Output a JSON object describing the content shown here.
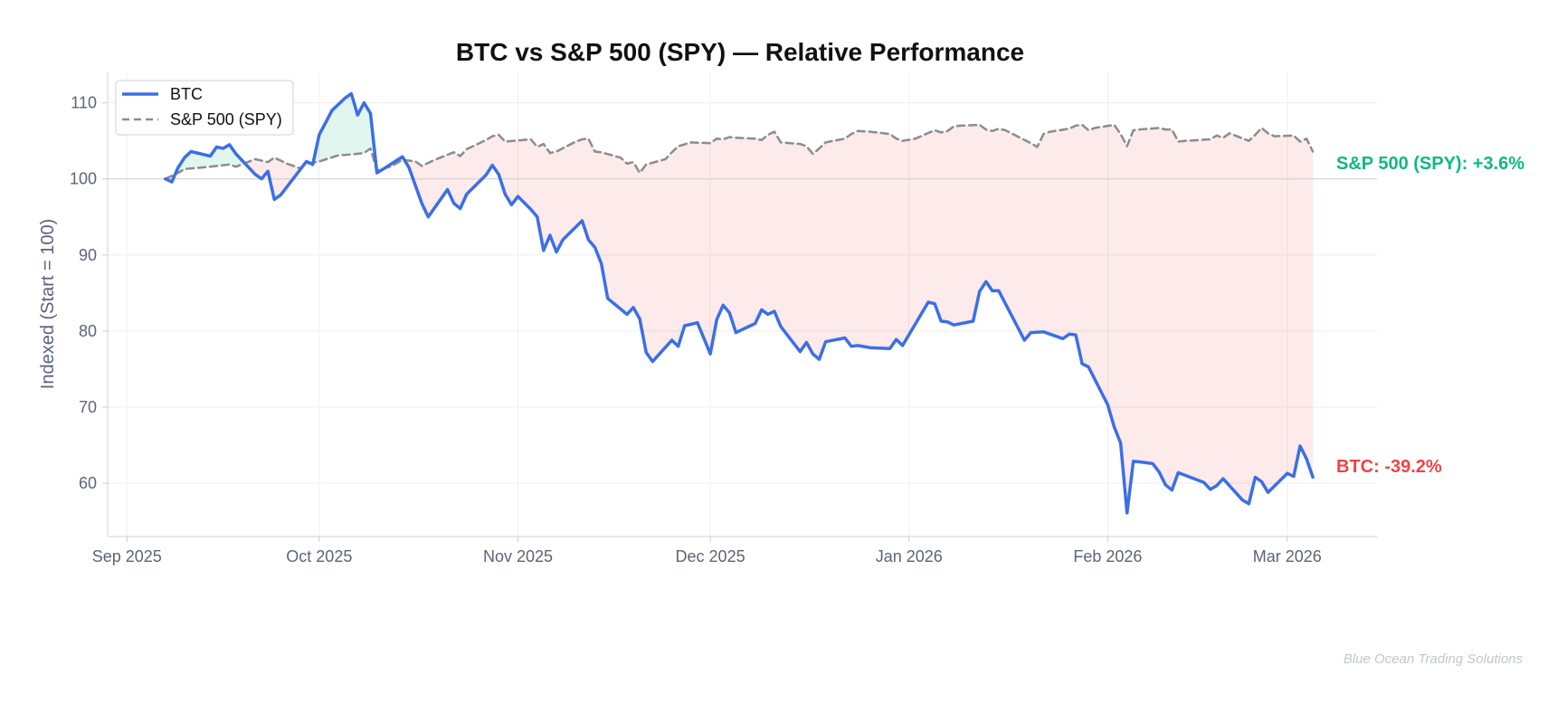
{
  "chart_data": {
    "type": "line",
    "title": "BTC vs S&P 500 (SPY) — Relative Performance",
    "ylabel": "Indexed (Start = 100)",
    "xlabel": "",
    "x_ticks": [
      "Sep 2025",
      "Oct 2025",
      "Nov 2025",
      "Dec 2025",
      "Jan 2026",
      "Feb 2026",
      "Mar 2026"
    ],
    "x_tick_dates": [
      "2025-09-01",
      "2025-10-01",
      "2025-11-01",
      "2025-12-01",
      "2026-01-01",
      "2026-02-01",
      "2026-03-01"
    ],
    "y_ticks": [
      60,
      70,
      80,
      90,
      100,
      110
    ],
    "xlim": [
      "2025-08-29",
      "2026-03-15"
    ],
    "ylim": [
      53,
      114
    ],
    "reference_line": 100,
    "grid": true,
    "legend_position": "top-left",
    "fill_outperform_color": "#10b981",
    "fill_underperform_color": "#ef4444",
    "series": [
      {
        "name": "BTC",
        "color": "#3b6fe6",
        "style": "solid",
        "end_label": "BTC: -39.2%",
        "end_label_color": "#ef4444",
        "points": [
          [
            "2025-09-07",
            100.0
          ],
          [
            "2025-09-08",
            99.6
          ],
          [
            "2025-09-09",
            101.5
          ],
          [
            "2025-09-10",
            102.8
          ],
          [
            "2025-09-11",
            103.6
          ],
          [
            "2025-09-14",
            103.0
          ],
          [
            "2025-09-15",
            104.2
          ],
          [
            "2025-09-16",
            104.0
          ],
          [
            "2025-09-17",
            104.5
          ],
          [
            "2025-09-18",
            103.3
          ],
          [
            "2025-09-21",
            100.6
          ],
          [
            "2025-09-22",
            100.0
          ],
          [
            "2025-09-23",
            101.0
          ],
          [
            "2025-09-24",
            97.3
          ],
          [
            "2025-09-25",
            97.9
          ],
          [
            "2025-09-29",
            102.3
          ],
          [
            "2025-09-30",
            101.9
          ],
          [
            "2025-10-01",
            105.8
          ],
          [
            "2025-10-03",
            109.0
          ],
          [
            "2025-10-05",
            110.6
          ],
          [
            "2025-10-06",
            111.2
          ],
          [
            "2025-10-07",
            108.4
          ],
          [
            "2025-10-08",
            110.0
          ],
          [
            "2025-10-09",
            108.6
          ],
          [
            "2025-10-10",
            100.8
          ],
          [
            "2025-10-11",
            101.3
          ],
          [
            "2025-10-13",
            102.4
          ],
          [
            "2025-10-14",
            102.9
          ],
          [
            "2025-10-15",
            101.5
          ],
          [
            "2025-10-17",
            96.8
          ],
          [
            "2025-10-18",
            95.0
          ],
          [
            "2025-10-21",
            98.6
          ],
          [
            "2025-10-22",
            96.8
          ],
          [
            "2025-10-23",
            96.1
          ],
          [
            "2025-10-24",
            98.0
          ],
          [
            "2025-10-27",
            100.5
          ],
          [
            "2025-10-28",
            101.8
          ],
          [
            "2025-10-29",
            100.6
          ],
          [
            "2025-10-30",
            98.0
          ],
          [
            "2025-10-31",
            96.6
          ],
          [
            "2025-11-01",
            97.7
          ],
          [
            "2025-11-03",
            96.0
          ],
          [
            "2025-11-04",
            95.0
          ],
          [
            "2025-11-05",
            90.6
          ],
          [
            "2025-11-06",
            92.6
          ],
          [
            "2025-11-07",
            90.4
          ],
          [
            "2025-11-08",
            92.0
          ],
          [
            "2025-11-11",
            94.5
          ],
          [
            "2025-11-12",
            92.0
          ],
          [
            "2025-11-13",
            91.0
          ],
          [
            "2025-11-14",
            88.9
          ],
          [
            "2025-11-15",
            84.3
          ],
          [
            "2025-11-18",
            82.2
          ],
          [
            "2025-11-19",
            83.1
          ],
          [
            "2025-11-20",
            81.6
          ],
          [
            "2025-11-21",
            77.2
          ],
          [
            "2025-11-22",
            76.0
          ],
          [
            "2025-11-25",
            78.8
          ],
          [
            "2025-11-26",
            78.0
          ],
          [
            "2025-11-27",
            80.7
          ],
          [
            "2025-11-29",
            81.1
          ],
          [
            "2025-12-01",
            77.0
          ],
          [
            "2025-12-02",
            81.5
          ],
          [
            "2025-12-03",
            83.4
          ],
          [
            "2025-12-04",
            82.4
          ],
          [
            "2025-12-05",
            79.8
          ],
          [
            "2025-12-08",
            81.0
          ],
          [
            "2025-12-09",
            82.8
          ],
          [
            "2025-12-10",
            82.2
          ],
          [
            "2025-12-11",
            82.6
          ],
          [
            "2025-12-12",
            80.6
          ],
          [
            "2025-12-15",
            77.3
          ],
          [
            "2025-12-16",
            78.5
          ],
          [
            "2025-12-17",
            77.0
          ],
          [
            "2025-12-18",
            76.3
          ],
          [
            "2025-12-19",
            78.6
          ],
          [
            "2025-12-22",
            79.1
          ],
          [
            "2025-12-23",
            78.0
          ],
          [
            "2025-12-24",
            78.1
          ],
          [
            "2025-12-26",
            77.8
          ],
          [
            "2025-12-29",
            77.7
          ],
          [
            "2025-12-30",
            78.9
          ],
          [
            "2025-12-31",
            78.1
          ],
          [
            "2026-01-04",
            83.8
          ],
          [
            "2026-01-05",
            83.6
          ],
          [
            "2026-01-06",
            81.3
          ],
          [
            "2026-01-07",
            81.2
          ],
          [
            "2026-01-08",
            80.8
          ],
          [
            "2026-01-11",
            81.3
          ],
          [
            "2026-01-12",
            85.2
          ],
          [
            "2026-01-13",
            86.5
          ],
          [
            "2026-01-14",
            85.3
          ],
          [
            "2026-01-15",
            85.3
          ],
          [
            "2026-01-19",
            78.8
          ],
          [
            "2026-01-20",
            79.8
          ],
          [
            "2026-01-22",
            79.9
          ],
          [
            "2026-01-25",
            79.0
          ],
          [
            "2026-01-26",
            79.6
          ],
          [
            "2026-01-27",
            79.5
          ],
          [
            "2026-01-28",
            75.7
          ],
          [
            "2026-01-29",
            75.3
          ],
          [
            "2026-02-01",
            70.3
          ],
          [
            "2026-02-02",
            67.4
          ],
          [
            "2026-02-03",
            65.3
          ],
          [
            "2026-02-04",
            56.1
          ],
          [
            "2026-02-05",
            62.9
          ],
          [
            "2026-02-08",
            62.6
          ],
          [
            "2026-02-09",
            61.5
          ],
          [
            "2026-02-10",
            59.8
          ],
          [
            "2026-02-11",
            59.1
          ],
          [
            "2026-02-12",
            61.4
          ],
          [
            "2026-02-16",
            60.1
          ],
          [
            "2026-02-17",
            59.2
          ],
          [
            "2026-02-18",
            59.7
          ],
          [
            "2026-02-19",
            60.6
          ],
          [
            "2026-02-22",
            57.8
          ],
          [
            "2026-02-23",
            57.3
          ],
          [
            "2026-02-24",
            60.8
          ],
          [
            "2026-02-25",
            60.2
          ],
          [
            "2026-02-26",
            58.8
          ],
          [
            "2026-03-01",
            61.3
          ],
          [
            "2026-03-02",
            60.9
          ],
          [
            "2026-03-03",
            64.9
          ],
          [
            "2026-03-04",
            63.2
          ],
          [
            "2026-03-05",
            60.8
          ]
        ]
      },
      {
        "name": "S&P 500 (SPY)",
        "color": "#8c8c8c",
        "style": "dashed",
        "end_label": "S&P 500 (SPY): +3.6%",
        "end_label_color": "#10b981",
        "points": [
          [
            "2025-09-07",
            100.0
          ],
          [
            "2025-09-09",
            100.8
          ],
          [
            "2025-09-10",
            101.3
          ],
          [
            "2025-09-14",
            101.6
          ],
          [
            "2025-09-17",
            101.9
          ],
          [
            "2025-09-18",
            101.6
          ],
          [
            "2025-09-21",
            102.6
          ],
          [
            "2025-09-23",
            102.2
          ],
          [
            "2025-09-24",
            102.8
          ],
          [
            "2025-09-26",
            102.0
          ],
          [
            "2025-09-28",
            101.4
          ],
          [
            "2025-09-29",
            102.0
          ],
          [
            "2025-10-01",
            102.3
          ],
          [
            "2025-10-04",
            103.1
          ],
          [
            "2025-10-06",
            103.2
          ],
          [
            "2025-10-08",
            103.4
          ],
          [
            "2025-10-09",
            104.0
          ],
          [
            "2025-10-10",
            101.1
          ],
          [
            "2025-10-12",
            101.6
          ],
          [
            "2025-10-13",
            102.0
          ],
          [
            "2025-10-14",
            102.5
          ],
          [
            "2025-10-16",
            102.3
          ],
          [
            "2025-10-17",
            101.7
          ],
          [
            "2025-10-19",
            102.5
          ],
          [
            "2025-10-22",
            103.5
          ],
          [
            "2025-10-23",
            103.0
          ],
          [
            "2025-10-24",
            103.9
          ],
          [
            "2025-10-27",
            105.1
          ],
          [
            "2025-10-28",
            105.6
          ],
          [
            "2025-10-29",
            105.8
          ],
          [
            "2025-10-30",
            104.9
          ],
          [
            "2025-11-03",
            105.2
          ],
          [
            "2025-11-04",
            104.2
          ],
          [
            "2025-11-05",
            104.6
          ],
          [
            "2025-11-06",
            103.4
          ],
          [
            "2025-11-07",
            103.6
          ],
          [
            "2025-11-10",
            104.9
          ],
          [
            "2025-11-11",
            105.2
          ],
          [
            "2025-11-12",
            105.3
          ],
          [
            "2025-11-13",
            103.6
          ],
          [
            "2025-11-14",
            103.5
          ],
          [
            "2025-11-17",
            102.8
          ],
          [
            "2025-11-18",
            102.0
          ],
          [
            "2025-11-19",
            102.2
          ],
          [
            "2025-11-20",
            100.8
          ],
          [
            "2025-11-21",
            101.9
          ],
          [
            "2025-11-24",
            102.6
          ],
          [
            "2025-11-25",
            103.5
          ],
          [
            "2025-11-26",
            104.3
          ],
          [
            "2025-11-28",
            104.8
          ],
          [
            "2025-12-01",
            104.7
          ],
          [
            "2025-12-02",
            105.3
          ],
          [
            "2025-12-03",
            105.2
          ],
          [
            "2025-12-04",
            105.5
          ],
          [
            "2025-12-05",
            105.4
          ],
          [
            "2025-12-08",
            105.3
          ],
          [
            "2025-12-09",
            105.1
          ],
          [
            "2025-12-10",
            105.8
          ],
          [
            "2025-12-11",
            106.2
          ],
          [
            "2025-12-12",
            104.8
          ],
          [
            "2025-12-15",
            104.6
          ],
          [
            "2025-12-16",
            104.3
          ],
          [
            "2025-12-17",
            103.3
          ],
          [
            "2025-12-18",
            104.0
          ],
          [
            "2025-12-19",
            104.8
          ],
          [
            "2025-12-22",
            105.3
          ],
          [
            "2025-12-23",
            105.9
          ],
          [
            "2025-12-24",
            106.3
          ],
          [
            "2025-12-26",
            106.2
          ],
          [
            "2025-12-29",
            105.9
          ],
          [
            "2025-12-30",
            105.3
          ],
          [
            "2025-12-31",
            105.0
          ],
          [
            "2026-01-02",
            105.3
          ],
          [
            "2026-01-05",
            106.4
          ],
          [
            "2026-01-06",
            106.1
          ],
          [
            "2026-01-07",
            106.3
          ],
          [
            "2026-01-08",
            106.9
          ],
          [
            "2026-01-09",
            107.0
          ],
          [
            "2026-01-12",
            107.1
          ],
          [
            "2026-01-13",
            106.5
          ],
          [
            "2026-01-14",
            106.3
          ],
          [
            "2026-01-15",
            106.6
          ],
          [
            "2026-01-16",
            106.4
          ],
          [
            "2026-01-20",
            104.7
          ],
          [
            "2026-01-21",
            104.2
          ],
          [
            "2026-01-22",
            105.9
          ],
          [
            "2026-01-23",
            106.2
          ],
          [
            "2026-01-26",
            106.6
          ],
          [
            "2026-01-27",
            107.0
          ],
          [
            "2026-01-28",
            107.1
          ],
          [
            "2026-01-29",
            106.4
          ],
          [
            "2026-01-30",
            106.7
          ],
          [
            "2026-02-02",
            107.1
          ],
          [
            "2026-02-03",
            105.9
          ],
          [
            "2026-02-04",
            104.3
          ],
          [
            "2026-02-05",
            106.4
          ],
          [
            "2026-02-06",
            106.5
          ],
          [
            "2026-02-09",
            106.7
          ],
          [
            "2026-02-10",
            106.5
          ],
          [
            "2026-02-11",
            106.5
          ],
          [
            "2026-02-12",
            104.9
          ],
          [
            "2026-02-13",
            105.0
          ],
          [
            "2026-02-17",
            105.2
          ],
          [
            "2026-02-18",
            105.7
          ],
          [
            "2026-02-19",
            105.4
          ],
          [
            "2026-02-20",
            106.0
          ],
          [
            "2026-02-23",
            105.0
          ],
          [
            "2026-02-24",
            105.8
          ],
          [
            "2026-02-25",
            106.7
          ],
          [
            "2026-02-26",
            106.0
          ],
          [
            "2026-02-27",
            105.6
          ],
          [
            "2026-03-02",
            105.7
          ],
          [
            "2026-03-03",
            104.9
          ],
          [
            "2026-03-04",
            105.3
          ],
          [
            "2026-03-05",
            103.6
          ]
        ]
      }
    ]
  },
  "watermark": "Blue Ocean Trading Solutions"
}
